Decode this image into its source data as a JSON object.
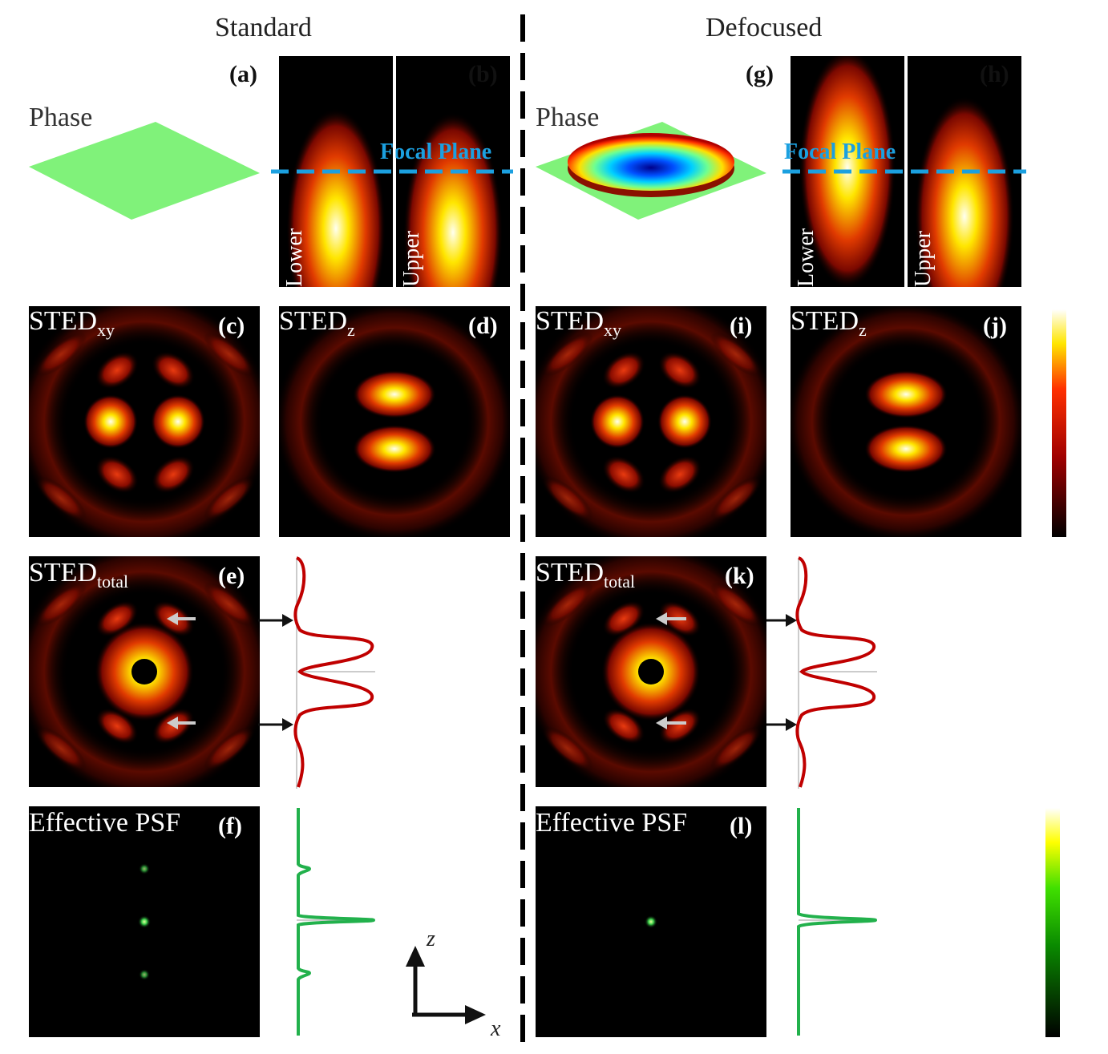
{
  "headers": {
    "standard": "Standard",
    "defocused": "Defocused"
  },
  "labels": {
    "a": "(a)",
    "b": "(b)",
    "c": "(c)",
    "d": "(d)",
    "e": "(e)",
    "f": "(f)",
    "g": "(g)",
    "h": "(h)",
    "i": "(i)",
    "j": "(j)",
    "k": "(k)",
    "l": "(l)"
  },
  "phase_label": "Phase",
  "focal_plane": "Focal Plane",
  "lower": "Lower",
  "upper": "Upper",
  "sted": {
    "base": "STED",
    "xy": "xy",
    "z": "z",
    "total": "total"
  },
  "effective_psf": "Effective PSF",
  "axes": {
    "z": "z",
    "x": "x"
  },
  "colors": {
    "hot_low": "#000000",
    "hot_mid": "#c81e00",
    "hot_high": "#ffe600",
    "hot_top": "#fffff0",
    "profile_red": "#c00000",
    "profile_green": "#22b14c",
    "focal_line": "#1ba0e0",
    "phase_green": "#80f27a",
    "dashed_line": "#000000"
  }
}
